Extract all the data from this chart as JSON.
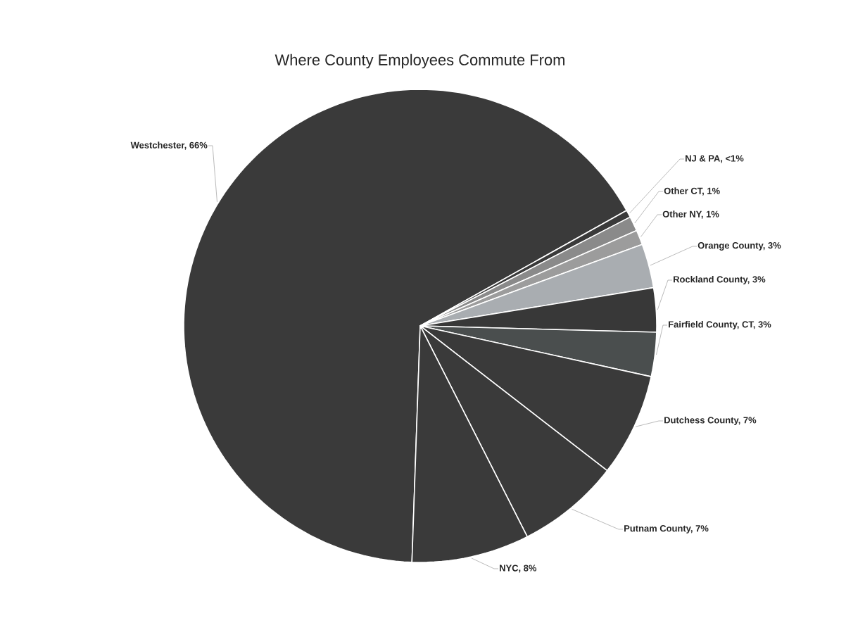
{
  "chart_data": {
    "type": "pie",
    "title": "Where County Employees Commute From",
    "categories": [
      "Westchester, 66%",
      "NJ & PA, <1%",
      "Other CT, 1%",
      "Other NY, 1%",
      "Orange County, 3%",
      "Rockland County, 3%",
      "Fairfield County, CT, 3%",
      "Dutchess County, 7%",
      "Putnam County, 7%",
      "NYC, 8%"
    ],
    "values": [
      66,
      0.5,
      1,
      1,
      3,
      3,
      3,
      7,
      7,
      8
    ],
    "colors": [
      "#3a3a3a",
      "#3a3a3a",
      "#8a8a8a",
      "#9c9c9c",
      "#a9adb1",
      "#383838",
      "#4a4e4e",
      "#3a3a3a",
      "#3a3a3a",
      "#3a3a3a"
    ]
  }
}
